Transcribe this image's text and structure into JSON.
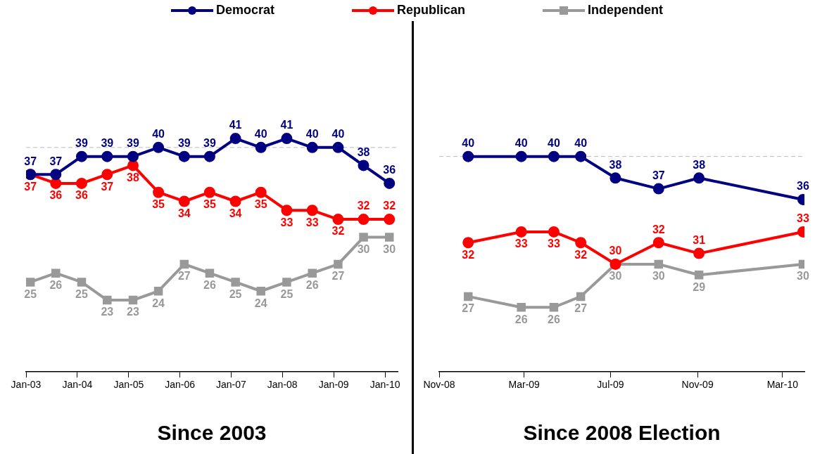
{
  "chart_data": [
    {
      "type": "line",
      "title": "Since 2003",
      "legend": "top",
      "data_labels": true,
      "grid": false,
      "tick_labels": "x",
      "x": [
        "2003-02",
        "2003-08",
        "2004-02",
        "2004-08",
        "2005-02",
        "2005-08",
        "2006-02",
        "2006-08",
        "2007-02",
        "2007-08",
        "2008-02",
        "2008-08",
        "2009-02",
        "2009-08",
        "2010-02"
      ],
      "xlim": [
        "2003-01",
        "2010-04"
      ],
      "xticks": [
        {
          "value": "2003-01",
          "label": "Jan-03"
        },
        {
          "value": "2004-01",
          "label": "Jan-04"
        },
        {
          "value": "2005-01",
          "label": "Jan-05"
        },
        {
          "value": "2006-01",
          "label": "Jan-06"
        },
        {
          "value": "2007-01",
          "label": "Jan-07"
        },
        {
          "value": "2008-01",
          "label": "Jan-08"
        },
        {
          "value": "2009-01",
          "label": "Jan-09"
        },
        {
          "value": "2010-01",
          "label": "Jan-10"
        }
      ],
      "ref_lines": [
        {
          "axis": "y",
          "value": 40,
          "color": "#bbbbbb",
          "line_style": "dashed"
        }
      ],
      "series": [
        {
          "name": "Democrat",
          "color": "#000080",
          "marker": "circle",
          "values": [
            37,
            37,
            39,
            39,
            39,
            40,
            39,
            39,
            41,
            40,
            41,
            40,
            40,
            38,
            36
          ]
        },
        {
          "name": "Republican",
          "color": "#ff0000",
          "marker": "circle",
          "values": [
            37,
            36,
            36,
            37,
            38,
            35,
            34,
            35,
            34,
            35,
            33,
            33,
            32,
            32,
            32
          ]
        },
        {
          "name": "Independent",
          "color": "#999999",
          "marker": "square",
          "values": [
            25,
            26,
            25,
            23,
            23,
            24,
            27,
            26,
            25,
            24,
            25,
            26,
            27,
            30,
            30
          ]
        }
      ]
    },
    {
      "type": "line",
      "title": "Since 2008 Election",
      "data_labels": true,
      "grid": false,
      "tick_labels": "x",
      "x": [
        "2008-12-12",
        "2009-02-25",
        "2009-04-12",
        "2009-05-20",
        "2009-07-08",
        "2009-09-07",
        "2009-11-03",
        "2010-03-30"
      ],
      "xlim": [
        "2008-11-01",
        "2010-04-01"
      ],
      "xticks": [
        {
          "value": "2008-11-01",
          "label": "Nov-08"
        },
        {
          "value": "2009-03-01",
          "label": "Mar-09"
        },
        {
          "value": "2009-07-01",
          "label": "Jul-09"
        },
        {
          "value": "2009-11-01",
          "label": "Nov-09"
        },
        {
          "value": "2010-03-01",
          "label": "Mar-10"
        }
      ],
      "ref_lines": [
        {
          "axis": "y",
          "value": 40,
          "color": "#bbbbbb",
          "line_style": "dashed"
        }
      ],
      "series": [
        {
          "color": "#000080",
          "marker": "circle",
          "values": [
            40,
            40,
            40,
            40,
            38,
            37,
            38,
            36
          ]
        },
        {
          "color": "#ff0000",
          "marker": "circle",
          "values": [
            32,
            33,
            33,
            32,
            30,
            32,
            31,
            33
          ]
        },
        {
          "color": "#999999",
          "marker": "square",
          "values": [
            27,
            26,
            26,
            27,
            30,
            30,
            29,
            30
          ]
        }
      ]
    }
  ]
}
